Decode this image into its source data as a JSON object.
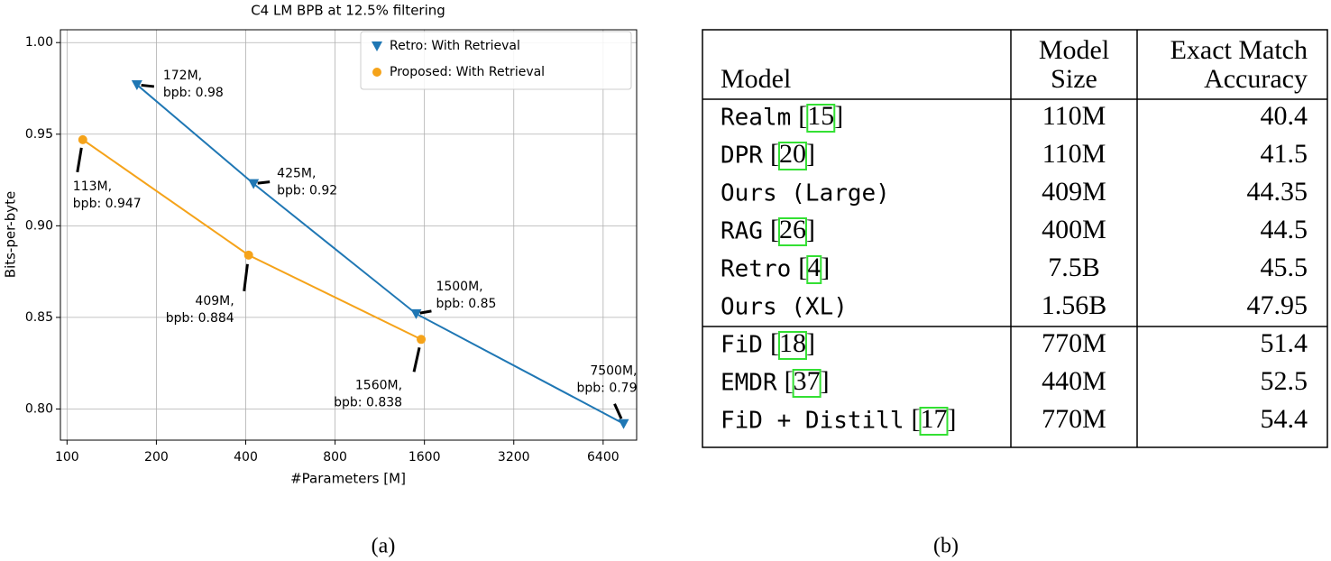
{
  "chart_data": {
    "type": "line",
    "title": "C4 LM BPB at 12.5% filtering",
    "x_label": "#Parameters [M]",
    "y_label": "Bits-per-byte",
    "x_scale": "log",
    "xlim": [
      95,
      8300
    ],
    "ylim": [
      0.783,
      1.007
    ],
    "xticks": [
      100,
      200,
      400,
      800,
      1600,
      3200,
      6400
    ],
    "yticks": [
      {
        "value": 0.8,
        "label": "0.80"
      },
      0.85,
      {
        "value": 0.9,
        "label": "0.90"
      },
      0.95,
      {
        "value": 1,
        "label": "1.00"
      }
    ],
    "grid": true,
    "legend": "upper right",
    "series": [
      {
        "name": "Retro: With Retrieval",
        "color": "#1f77b4",
        "marker": "triangle-down",
        "x": [
          172,
          425,
          1500,
          7500
        ],
        "values": [
          0.977,
          0.923,
          0.852,
          0.792
        ],
        "value_labels": [
          [
            "172M,",
            "bpb: 0.98"
          ],
          [
            "425M,",
            "bpb: 0.92"
          ],
          [
            "1500M,",
            "bpb: 0.85"
          ],
          [
            "7500M,",
            "bpb: 0.79"
          ]
        ]
      },
      {
        "name": "Proposed: With Retrieval",
        "color": "#f5a31a",
        "marker": "circle",
        "x": [
          113,
          409,
          1560
        ],
        "values": [
          0.947,
          0.884,
          0.838
        ],
        "value_labels": [
          [
            "113M,",
            "bpb: 0.947"
          ],
          [
            "409M,",
            "bpb: 0.884"
          ],
          [
            "1560M,",
            "bpb: 0.838"
          ]
        ]
      }
    ]
  },
  "table": {
    "columns": [
      [
        "Model"
      ],
      [
        "Model",
        "Size"
      ],
      [
        "Exact Match",
        "Accuracy"
      ]
    ],
    "ref_brackets": [
      "[",
      "]"
    ],
    "groups": [
      [
        {
          "model": "Realm",
          "ref": "15",
          "size": "110M",
          "accuracy": 40.4
        },
        {
          "model": "DPR",
          "ref": "20",
          "size": "110M",
          "accuracy": 41.5
        },
        {
          "model": "Ours (Large)",
          "ref": null,
          "size": "409M",
          "accuracy": 44.35
        },
        {
          "model": "RAG",
          "ref": "26",
          "size": "400M",
          "accuracy": 44.5
        },
        {
          "model": "Retro",
          "ref": "4",
          "size": "7.5B",
          "accuracy": 45.5
        },
        {
          "model": "Ours (XL)",
          "ref": null,
          "size": "1.56B",
          "accuracy": 47.95
        }
      ],
      [
        {
          "model": "FiD",
          "ref": "18",
          "size": "770M",
          "accuracy": 51.4
        },
        {
          "model": "EMDR",
          "ref": "37",
          "size": "440M",
          "accuracy": 52.5
        },
        {
          "model": "FiD + Distill",
          "ref": "17",
          "size": "770M",
          "accuracy": 54.4
        }
      ]
    ]
  },
  "captions": [
    "(a)",
    "(b)"
  ]
}
